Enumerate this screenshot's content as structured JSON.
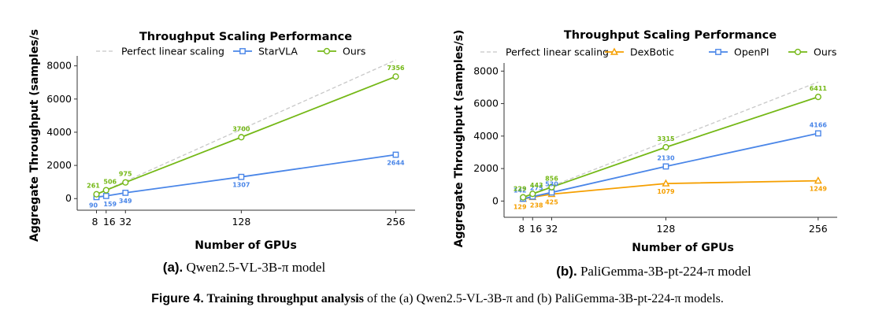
{
  "chart_data": [
    {
      "type": "line",
      "title": "Throughput Scaling Performance",
      "xlabel": "Number of GPUs",
      "ylabel": "Aggregate Throughput (samples/s",
      "x": [
        8,
        16,
        32,
        128,
        256
      ],
      "xticks": [
        "8",
        "16",
        "32",
        "128",
        "256"
      ],
      "yticks": [
        0,
        2000,
        4000,
        6000,
        8000
      ],
      "xlim": [
        -8,
        272
      ],
      "ylim": [
        -700,
        8600
      ],
      "grid": false,
      "legend": "top",
      "ideal": {
        "name": "Perfect linear scaling",
        "base": 261,
        "color": "#c8c8c8"
      },
      "series": [
        {
          "name": "StarVLA",
          "marker": "square",
          "color": "#4a86e8",
          "labels": [
            "90",
            "159",
            "349",
            "1307",
            "2644"
          ],
          "values": [
            90,
            159,
            349,
            1307,
            2644
          ],
          "label_pos": "below"
        },
        {
          "name": "Ours",
          "marker": "circle",
          "color": "#74b816",
          "labels": [
            "261",
            "506",
            "975",
            "3700",
            "7356"
          ],
          "values": [
            261,
            506,
            975,
            3700,
            7356
          ],
          "label_pos": "above"
        }
      ],
      "caption": {
        "tag": "(a).",
        "text": " Qwen2.5-VL-3B-π model"
      }
    },
    {
      "type": "line",
      "title": "Throughput Scaling Performance",
      "xlabel": "Number of GPUs",
      "ylabel": "Aggregate Throughput (samples/s)",
      "x": [
        8,
        16,
        32,
        128,
        256
      ],
      "xticks": [
        "8",
        "16",
        "32",
        "128",
        "256"
      ],
      "yticks": [
        0,
        2000,
        4000,
        6000,
        8000
      ],
      "xlim": [
        -8,
        272
      ],
      "ylim": [
        -1000,
        8500
      ],
      "grid": false,
      "legend": "top",
      "ideal": {
        "name": "Perfect linear scaling",
        "base": 229,
        "color": "#c8c8c8"
      },
      "series": [
        {
          "name": "DexBotic",
          "marker": "triangle",
          "color": "#f59f00",
          "labels": [
            "129",
            "238",
            "425",
            "1079",
            "1249"
          ],
          "values": [
            129,
            238,
            425,
            1079,
            1249
          ],
          "label_pos": "below"
        },
        {
          "name": "OpenPI",
          "marker": "square",
          "color": "#4a86e8",
          "labels": [
            "142",
            "275",
            "530",
            "2130",
            "4166"
          ],
          "values": [
            142,
            275,
            530,
            2130,
            4166
          ],
          "label_pos": "above"
        },
        {
          "name": "Ours",
          "marker": "circle",
          "color": "#74b816",
          "labels": [
            "229",
            "443",
            "856",
            "3315",
            "6411"
          ],
          "values": [
            229,
            443,
            856,
            3315,
            6411
          ],
          "label_pos": "above"
        }
      ],
      "caption": {
        "tag": "(b).",
        "text": " PaliGemma-3B-pt-224-π model"
      }
    }
  ],
  "figure_caption": {
    "label": "Figure 4.",
    "bold": " Training throughput analysis",
    "rest": " of the (a) Qwen2.5-VL-3B-π and (b) PaliGemma-3B-pt-224-π models."
  }
}
